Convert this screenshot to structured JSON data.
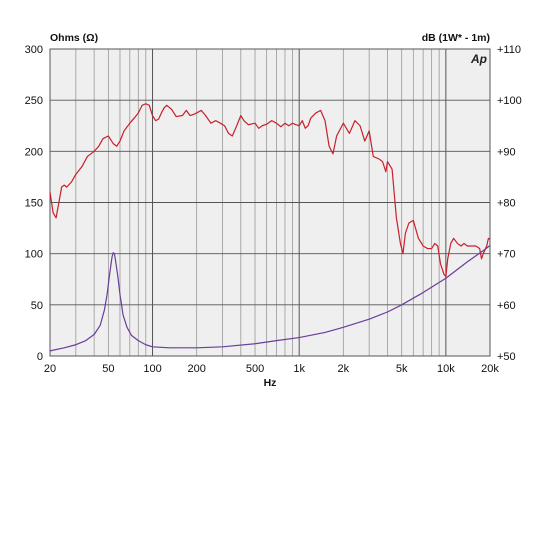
{
  "chart_data": {
    "type": "line",
    "left_axis_label": "Ohms (Ω)",
    "right_axis_label": "dB (1W* - 1m)",
    "xlabel": "Hz",
    "logo_text": "Ap",
    "x_scale": "log",
    "xlim": [
      20,
      20000
    ],
    "ylim_left": [
      0,
      300
    ],
    "ylim_right": [
      50,
      110
    ],
    "grid": true,
    "x_tick_labels": [
      {
        "value": 20,
        "label": "20"
      },
      {
        "value": 50,
        "label": "50"
      },
      {
        "value": 100,
        "label": "100"
      },
      {
        "value": 200,
        "label": "200"
      },
      {
        "value": 500,
        "label": "500"
      },
      {
        "value": 1000,
        "label": "1k"
      },
      {
        "value": 2000,
        "label": "2k"
      },
      {
        "value": 5000,
        "label": "5k"
      },
      {
        "value": 10000,
        "label": "10k"
      },
      {
        "value": 20000,
        "label": "20k"
      }
    ],
    "left_ticks": [
      {
        "value": 0,
        "label": "0"
      },
      {
        "value": 50,
        "label": "50"
      },
      {
        "value": 100,
        "label": "100"
      },
      {
        "value": 150,
        "label": "150"
      },
      {
        "value": 200,
        "label": "200"
      },
      {
        "value": 250,
        "label": "250"
      },
      {
        "value": 300,
        "label": "300"
      }
    ],
    "right_ticks": [
      {
        "value": 50,
        "label": "+50"
      },
      {
        "value": 60,
        "label": "+60"
      },
      {
        "value": 70,
        "label": "+70"
      },
      {
        "value": 80,
        "label": "+80"
      },
      {
        "value": 90,
        "label": "+90"
      },
      {
        "value": 100,
        "label": "+100"
      },
      {
        "value": 110,
        "label": "+110"
      }
    ],
    "series": [
      {
        "axis": "right",
        "color": "#c8202c",
        "points": [
          [
            20,
            82
          ],
          [
            21,
            78
          ],
          [
            22,
            77
          ],
          [
            23,
            80
          ],
          [
            24,
            83
          ],
          [
            25,
            83.4
          ],
          [
            26,
            83
          ],
          [
            28,
            84
          ],
          [
            30,
            85.5
          ],
          [
            33,
            87
          ],
          [
            36,
            89
          ],
          [
            40,
            90
          ],
          [
            43,
            91
          ],
          [
            46,
            92.5
          ],
          [
            50,
            93
          ],
          [
            54,
            91.5
          ],
          [
            57,
            91
          ],
          [
            60,
            92
          ],
          [
            64,
            94
          ],
          [
            70,
            95.5
          ],
          [
            75,
            96.5
          ],
          [
            80,
            97.5
          ],
          [
            85,
            99
          ],
          [
            90,
            99.3
          ],
          [
            95,
            99
          ],
          [
            100,
            97
          ],
          [
            105,
            96
          ],
          [
            110,
            96.3
          ],
          [
            115,
            97.5
          ],
          [
            120,
            98.5
          ],
          [
            125,
            99
          ],
          [
            135,
            98.2
          ],
          [
            145,
            96.8
          ],
          [
            160,
            97
          ],
          [
            170,
            98
          ],
          [
            180,
            97
          ],
          [
            190,
            97.2
          ],
          [
            200,
            97.5
          ],
          [
            215,
            98
          ],
          [
            230,
            97
          ],
          [
            250,
            95.5
          ],
          [
            270,
            96
          ],
          [
            290,
            95.5
          ],
          [
            310,
            95
          ],
          [
            330,
            93.5
          ],
          [
            350,
            93
          ],
          [
            375,
            95
          ],
          [
            400,
            97
          ],
          [
            420,
            96
          ],
          [
            450,
            95.2
          ],
          [
            500,
            95.5
          ],
          [
            530,
            94.5
          ],
          [
            560,
            95
          ],
          [
            600,
            95.3
          ],
          [
            650,
            96
          ],
          [
            700,
            95.5
          ],
          [
            750,
            94.8
          ],
          [
            800,
            95.5
          ],
          [
            850,
            95
          ],
          [
            900,
            95.5
          ],
          [
            950,
            95.2
          ],
          [
            1000,
            95
          ],
          [
            1050,
            96
          ],
          [
            1100,
            94.5
          ],
          [
            1150,
            95
          ],
          [
            1200,
            96.5
          ],
          [
            1300,
            97.5
          ],
          [
            1400,
            98
          ],
          [
            1500,
            96
          ],
          [
            1600,
            91
          ],
          [
            1700,
            89.5
          ],
          [
            1800,
            93
          ],
          [
            2000,
            95.5
          ],
          [
            2200,
            93.5
          ],
          [
            2400,
            96
          ],
          [
            2600,
            95
          ],
          [
            2800,
            92
          ],
          [
            3000,
            94
          ],
          [
            3200,
            89
          ],
          [
            3500,
            88.5
          ],
          [
            3700,
            88
          ],
          [
            3900,
            86
          ],
          [
            4000,
            88
          ],
          [
            4300,
            86.5
          ],
          [
            4600,
            77
          ],
          [
            4900,
            72
          ],
          [
            5100,
            70
          ],
          [
            5300,
            74
          ],
          [
            5600,
            76
          ],
          [
            6000,
            76.5
          ],
          [
            6500,
            73
          ],
          [
            7000,
            71.5
          ],
          [
            7500,
            71
          ],
          [
            8000,
            71
          ],
          [
            8400,
            72
          ],
          [
            8800,
            71.5
          ],
          [
            9200,
            68
          ],
          [
            9700,
            66
          ],
          [
            10000,
            65.5
          ],
          [
            10300,
            69
          ],
          [
            10800,
            72
          ],
          [
            11300,
            73
          ],
          [
            12000,
            72
          ],
          [
            12700,
            71.5
          ],
          [
            13300,
            72
          ],
          [
            14000,
            71.5
          ],
          [
            15000,
            71.5
          ],
          [
            16000,
            71.5
          ],
          [
            17000,
            71
          ],
          [
            17500,
            69
          ],
          [
            18000,
            70
          ],
          [
            19000,
            71.5
          ],
          [
            19500,
            73
          ],
          [
            20000,
            72.8
          ]
        ]
      },
      {
        "axis": "left",
        "color": "#6a3d9a",
        "points": [
          [
            20,
            5
          ],
          [
            25,
            8
          ],
          [
            30,
            11
          ],
          [
            35,
            15
          ],
          [
            40,
            21
          ],
          [
            44,
            30
          ],
          [
            47,
            45
          ],
          [
            49,
            60
          ],
          [
            51,
            80
          ],
          [
            53,
            97
          ],
          [
            54,
            101
          ],
          [
            55,
            100
          ],
          [
            56,
            93
          ],
          [
            58,
            78
          ],
          [
            60,
            60
          ],
          [
            63,
            40
          ],
          [
            67,
            28
          ],
          [
            72,
            20
          ],
          [
            80,
            15
          ],
          [
            90,
            11
          ],
          [
            100,
            9
          ],
          [
            130,
            8
          ],
          [
            200,
            8
          ],
          [
            300,
            9
          ],
          [
            500,
            12
          ],
          [
            700,
            15
          ],
          [
            1000,
            18
          ],
          [
            1500,
            23
          ],
          [
            2000,
            28
          ],
          [
            3000,
            36
          ],
          [
            4000,
            43
          ],
          [
            5000,
            50
          ],
          [
            7000,
            62
          ],
          [
            10000,
            76
          ],
          [
            14000,
            92
          ],
          [
            18000,
            103
          ],
          [
            20000,
            108
          ]
        ]
      }
    ]
  }
}
